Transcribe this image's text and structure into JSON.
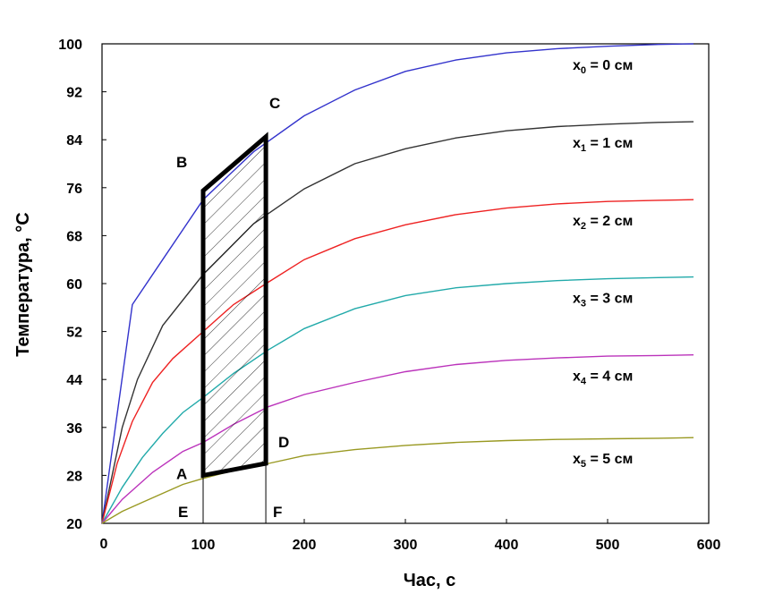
{
  "chart_data": {
    "type": "line",
    "title": "",
    "xlabel": "Час, с",
    "ylabel": "Температура, °C",
    "xlim": [
      0,
      600
    ],
    "ylim": [
      20,
      100
    ],
    "x_origin_label": "0",
    "x_ticks": [
      100,
      200,
      300,
      400,
      500,
      600
    ],
    "y_ticks": [
      20,
      28,
      36,
      44,
      52,
      60,
      68,
      76,
      84,
      92,
      100
    ],
    "grid": false,
    "legend": "inline-right",
    "series": [
      {
        "name": "x0 = 0 см",
        "label_var": "x",
        "label_sub": "0",
        "label_rest": " = 0 см",
        "color": "#3333cc",
        "x": [
          0,
          30,
          60,
          100,
          150,
          200,
          250,
          300,
          350,
          400,
          450,
          500,
          550,
          585
        ],
        "y": [
          20,
          56.5,
          64,
          74,
          82,
          88,
          92.3,
          95.4,
          97.3,
          98.5,
          99.2,
          99.6,
          99.9,
          100
        ]
      },
      {
        "name": "x1 = 1 см",
        "label_var": "x",
        "label_sub": "1",
        "label_rest": " = 1 см",
        "color": "#333333",
        "x": [
          0,
          10,
          20,
          35,
          60,
          100,
          150,
          200,
          250,
          300,
          350,
          400,
          450,
          500,
          550,
          585
        ],
        "y": [
          20,
          28,
          36,
          44,
          53,
          61.5,
          70,
          75.8,
          80,
          82.5,
          84.3,
          85.5,
          86.2,
          86.6,
          86.9,
          87
        ]
      },
      {
        "name": "x2 = 2 см",
        "label_var": "x",
        "label_sub": "2",
        "label_rest": " = 2 см",
        "color": "#ee2222",
        "x": [
          0,
          15,
          30,
          50,
          70,
          100,
          130,
          165,
          200,
          250,
          300,
          350,
          400,
          450,
          500,
          550,
          585
        ],
        "y": [
          20,
          30,
          37,
          43.5,
          47.5,
          52,
          56.5,
          60.3,
          64,
          67.5,
          69.8,
          71.5,
          72.6,
          73.3,
          73.7,
          73.9,
          74
        ]
      },
      {
        "name": "x3 = 3 см",
        "label_var": "x",
        "label_sub": "3",
        "label_rest": " = 3 см",
        "color": "#22aaaa",
        "x": [
          0,
          20,
          40,
          60,
          80,
          100,
          130,
          165,
          200,
          250,
          300,
          350,
          400,
          450,
          500,
          550,
          585
        ],
        "y": [
          20,
          26,
          31,
          35,
          38.5,
          41,
          45,
          49,
          52.5,
          55.8,
          58,
          59.3,
          60,
          60.5,
          60.8,
          61,
          61.1
        ]
      },
      {
        "name": "x4 = 4 см",
        "label_var": "x",
        "label_sub": "4",
        "label_rest": " = 4 см",
        "color": "#bb33bb",
        "x": [
          0,
          20,
          50,
          80,
          100,
          130,
          165,
          200,
          250,
          300,
          350,
          400,
          450,
          500,
          550,
          585
        ],
        "y": [
          20,
          24,
          28.5,
          32,
          33.5,
          36.5,
          39.5,
          41.5,
          43.5,
          45.3,
          46.5,
          47.2,
          47.6,
          47.9,
          48,
          48.1
        ]
      },
      {
        "name": "x5 = 5 см",
        "label_var": "x",
        "label_sub": "5",
        "label_rest": " = 5 см",
        "color": "#999922",
        "x": [
          0,
          20,
          40,
          60,
          80,
          100,
          130,
          165,
          200,
          250,
          300,
          350,
          400,
          450,
          500,
          550,
          585
        ],
        "y": [
          20,
          22,
          23.5,
          25,
          26.5,
          27.5,
          28.8,
          30,
          31.3,
          32.3,
          33,
          33.5,
          33.8,
          34,
          34.1,
          34.2,
          34.3
        ]
      }
    ],
    "shaded_region": {
      "points": [
        {
          "label": "A",
          "x": 100,
          "y": 28
        },
        {
          "label": "B",
          "x": 100,
          "y": 75.5
        },
        {
          "label": "C",
          "x": 162,
          "y": 84.5
        },
        {
          "label": "D",
          "x": 162,
          "y": 30
        }
      ],
      "drop_lines": [
        {
          "label": "E",
          "x": 100
        },
        {
          "label": "F",
          "x": 162
        }
      ]
    }
  }
}
